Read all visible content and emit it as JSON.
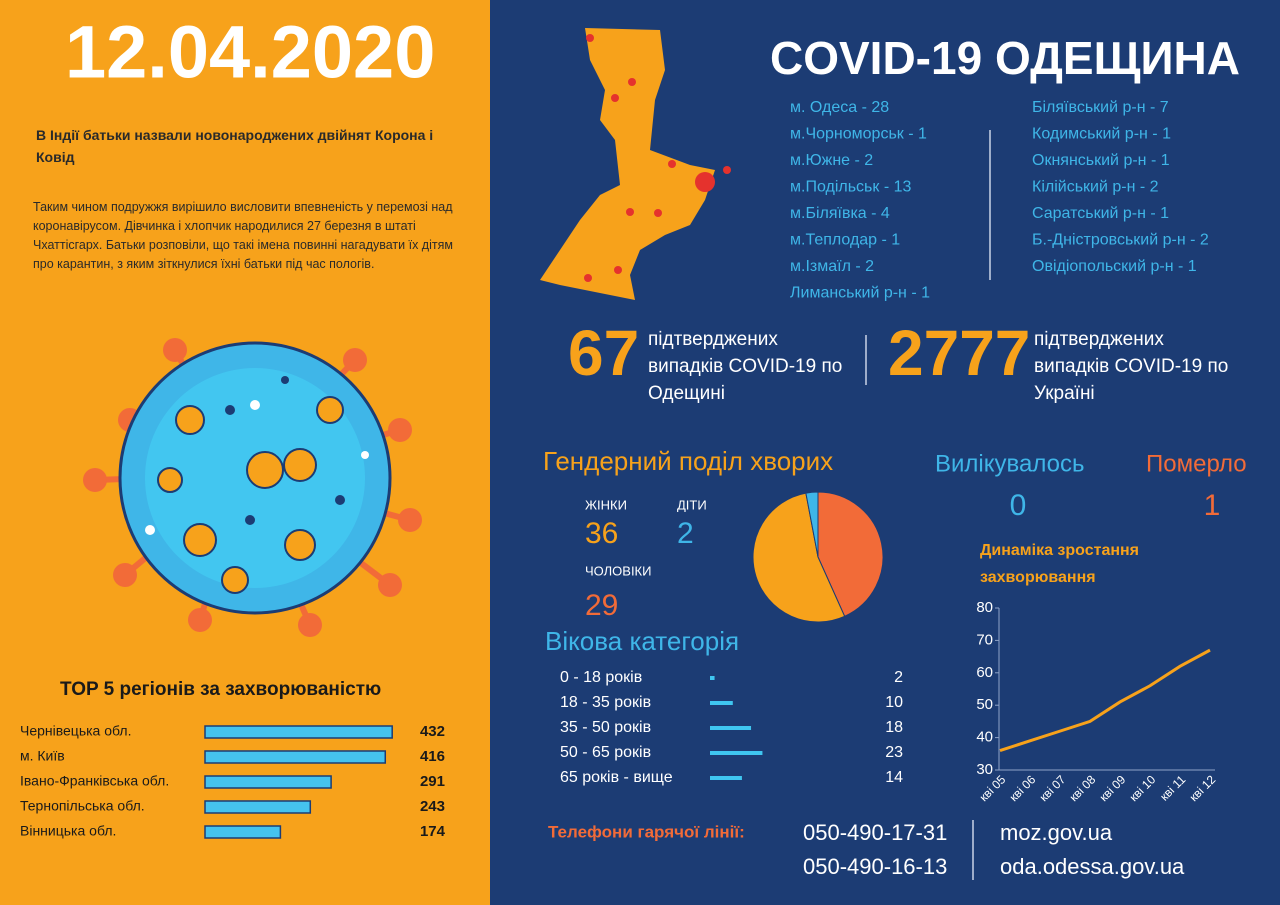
{
  "date": "12.04.2020",
  "news": {
    "title": "В Індії батьки назвали новонароджених двійнят Корона і Ковід",
    "body": "Таким чином подружжя вирішило висловити впевненість у перемозі над коронавірусом. Дівчинка і хлопчик народилися 27 березня в штаті Чхаттісгарх. Батьки розповіли, що такі імена повинні нагадувати їх дітям про карантин, з яким зіткнулися їхні батьки під час пологів."
  },
  "header": {
    "title": "COVID-19 ОДЕЩИНА"
  },
  "cities": [
    "м. Одеса - 28",
    "м.Чорноморськ - 1",
    "м.Южне - 2",
    "м.Подільськ - 13",
    "м.Біляївка - 4",
    "м.Теплодар - 1",
    "м.Ізмаїл - 2",
    "Лиманський р-н - 1"
  ],
  "districts": [
    "Біляївський р-н - 7",
    "Кодимський р-н - 1",
    "Окнянський р-н - 1",
    "Кілійський р-н - 2",
    "Саратський р-н - 1",
    "Б.-Дністровський р-н - 2",
    "Овідіопольский р-н - 1"
  ],
  "totals": [
    {
      "value": 67,
      "label": "підтверджених випадків COVID-19 по Одещині"
    },
    {
      "value": 2777,
      "label": "підтверджених випадків COVID-19 по Україні"
    }
  ],
  "recovered": {
    "label": "Вилікувалось",
    "value": 0
  },
  "died": {
    "label": "Померло",
    "value": 1
  },
  "hotline": {
    "label": "Телефони гарячої лінії:",
    "phones": [
      "050-490-17-31",
      "050-490-16-13"
    ],
    "sites": [
      "moz.gov.ua",
      "oda.odessa.gov.ua"
    ]
  },
  "chart_data": [
    {
      "type": "hbar",
      "title": "TOP 5 регіонів за захворюваністю",
      "categories": [
        "Чернівецька обл.",
        "м. Київ",
        "Івано-Франківська обл.",
        "Тернопільська обл.",
        "Вінницька обл."
      ],
      "values": [
        432,
        416,
        291,
        243,
        174
      ],
      "color": "#45c3ee",
      "xlim": [
        0,
        450
      ]
    },
    {
      "type": "pie",
      "title": "Гендерний поділ хворих",
      "categories": [
        "ЧОЛОВІКИ",
        "ЖІНКИ",
        "ДІТИ"
      ],
      "values": [
        29,
        36,
        2
      ],
      "colors": [
        "#f26b38",
        "#f7a21b",
        "#3fb6e8"
      ]
    },
    {
      "type": "hbar-small",
      "title": "Вікова категорія",
      "categories": [
        "0 - 18 років",
        "18 - 35 років",
        "35 - 50 років",
        "50 - 65 років",
        "65 років - вище"
      ],
      "values": [
        2,
        10,
        18,
        23,
        14
      ],
      "color": "#3fc6f0",
      "xlim": [
        0,
        25
      ]
    },
    {
      "type": "line",
      "title": "Динаміка зростання захворювання",
      "categories": [
        "кві 05",
        "кві 06",
        "кві 07",
        "кві 08",
        "кві 09",
        "кві 10",
        "кві 11",
        "кві 12"
      ],
      "values": [
        36,
        39,
        42,
        45,
        51,
        56,
        62,
        67
      ],
      "color": "#f7a21b",
      "ylim": [
        30,
        80
      ],
      "yticks": [
        30,
        40,
        50,
        60,
        70,
        80
      ]
    }
  ]
}
